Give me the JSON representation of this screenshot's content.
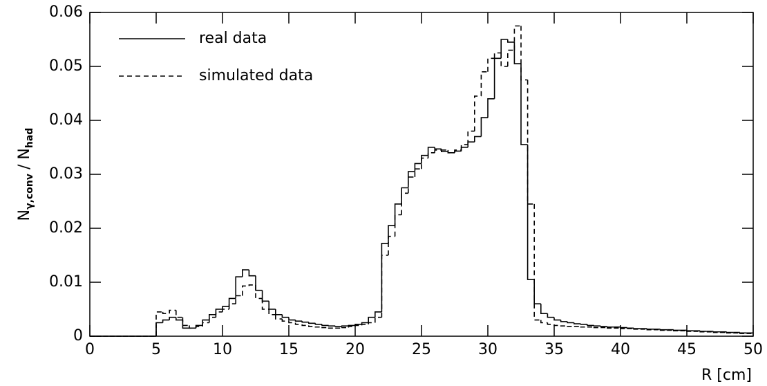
{
  "chart_data": {
    "type": "step_histogram",
    "xlabel": "R [cm]",
    "ylabel": [
      "N",
      "γ,conv",
      "/ N",
      "had"
    ],
    "bins": [
      0,
      0.5,
      1,
      1.5,
      2,
      2.5,
      3,
      3.5,
      4,
      4.5,
      5,
      5.5,
      6,
      6.5,
      7,
      7.5,
      8,
      8.5,
      9,
      9.5,
      10,
      10.5,
      11,
      11.5,
      12,
      12.5,
      13,
      13.5,
      14,
      14.5,
      15,
      15.5,
      16,
      16.5,
      17,
      17.5,
      18,
      18.5,
      19,
      19.5,
      20,
      20.5,
      21,
      21.5,
      22,
      22.5,
      23,
      23.5,
      24,
      24.5,
      25,
      25.5,
      26,
      26.5,
      27,
      27.5,
      28,
      28.5,
      29,
      29.5,
      30,
      30.5,
      31,
      31.5,
      32,
      32.5,
      33,
      33.5,
      34,
      34.5,
      35,
      35.5,
      36,
      36.5,
      37,
      37.5,
      38,
      38.5,
      39,
      39.5,
      40,
      40.5,
      41,
      41.5,
      42,
      42.5,
      43,
      43.5,
      44,
      44.5,
      45,
      45.5,
      46,
      46.5,
      47,
      47.5,
      48,
      48.5,
      49,
      49.5,
      50
    ],
    "series": [
      {
        "name": "real data",
        "color": "#000000",
        "linestyle": "solid",
        "values": [
          0,
          0,
          0,
          0,
          0,
          0,
          0,
          0,
          0,
          0,
          0.0025,
          0.003,
          0.0035,
          0.003,
          0.0015,
          0.0015,
          0.002,
          0.003,
          0.004,
          0.005,
          0.0055,
          0.007,
          0.011,
          0.0123,
          0.0112,
          0.0085,
          0.0065,
          0.005,
          0.004,
          0.0035,
          0.003,
          0.0028,
          0.0026,
          0.0024,
          0.0022,
          0.002,
          0.0019,
          0.0018,
          0.0019,
          0.002,
          0.0022,
          0.0025,
          0.0035,
          0.0045,
          0.0172,
          0.0205,
          0.0245,
          0.0275,
          0.0305,
          0.032,
          0.0335,
          0.035,
          0.0347,
          0.0342,
          0.034,
          0.0343,
          0.035,
          0.036,
          0.037,
          0.0405,
          0.044,
          0.0515,
          0.055,
          0.0545,
          0.0505,
          0.0355,
          0.0105,
          0.006,
          0.0042,
          0.0035,
          0.003,
          0.0027,
          0.0025,
          0.0023,
          0.0022,
          0.002,
          0.0019,
          0.0018,
          0.0017,
          0.0017,
          0.0016,
          0.0015,
          0.0014,
          0.0014,
          0.0013,
          0.0013,
          0.0012,
          0.0012,
          0.0011,
          0.0011,
          0.001,
          0.001,
          0.0009,
          0.0009,
          0.0008,
          0.0008,
          0.0007,
          0.0007,
          0.0006,
          0.0006
        ]
      },
      {
        "name": "simulated data",
        "color": "#000000",
        "linestyle": "dashed",
        "values": [
          0,
          0,
          0,
          0,
          0,
          0,
          0,
          0,
          0,
          0,
          0.0045,
          0.0042,
          0.0048,
          0.0035,
          0.002,
          0.0015,
          0.0018,
          0.0025,
          0.0035,
          0.0045,
          0.005,
          0.006,
          0.0075,
          0.0093,
          0.0095,
          0.007,
          0.005,
          0.004,
          0.0032,
          0.0028,
          0.0025,
          0.0022,
          0.002,
          0.0018,
          0.0017,
          0.0016,
          0.0015,
          0.0015,
          0.0016,
          0.0018,
          0.002,
          0.0022,
          0.0025,
          0.0035,
          0.015,
          0.0185,
          0.0225,
          0.0265,
          0.0295,
          0.031,
          0.033,
          0.034,
          0.0345,
          0.0345,
          0.034,
          0.0345,
          0.0355,
          0.038,
          0.0445,
          0.049,
          0.0515,
          0.0525,
          0.05,
          0.053,
          0.0575,
          0.0475,
          0.0245,
          0.003,
          0.0025,
          0.0022,
          0.002,
          0.0019,
          0.0018,
          0.0018,
          0.0017,
          0.0017,
          0.0016,
          0.0016,
          0.0015,
          0.0015,
          0.0014,
          0.0014,
          0.0013,
          0.0013,
          0.0012,
          0.0012,
          0.0011,
          0.0011,
          0.001,
          0.001,
          0.0009,
          0.0009,
          0.0008,
          0.0008,
          0.0007,
          0.0007,
          0.0006,
          0.0006,
          0.0005,
          0.0005
        ]
      }
    ],
    "xlim": [
      0,
      50
    ],
    "ylim": [
      0,
      0.06
    ],
    "xticks": [
      0,
      5,
      10,
      15,
      20,
      25,
      30,
      35,
      40,
      45,
      50
    ],
    "yticks": [
      0,
      0.01,
      0.02,
      0.03,
      0.04,
      0.05,
      0.06
    ],
    "legend": "upper-left"
  }
}
